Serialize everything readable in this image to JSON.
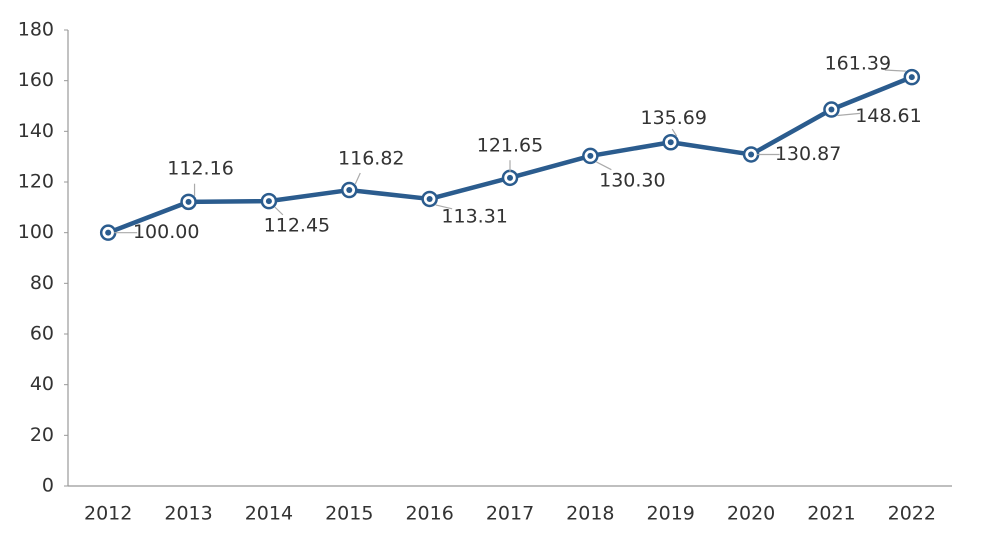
{
  "chart_data": {
    "type": "line",
    "categories": [
      "2012",
      "2013",
      "2014",
      "2015",
      "2016",
      "2017",
      "2018",
      "2019",
      "2020",
      "2021",
      "2022"
    ],
    "values": [
      100.0,
      112.16,
      112.45,
      116.82,
      113.31,
      121.65,
      130.3,
      135.69,
      130.87,
      148.61,
      161.39
    ],
    "value_labels": [
      "100.00",
      "112.16",
      "112.45",
      "116.82",
      "113.31",
      "121.65",
      "130.30",
      "135.69",
      "130.87",
      "148.61",
      "161.39"
    ],
    "color": "#2b5c8e",
    "ylim": [
      0,
      180
    ],
    "yticks": [
      0,
      20,
      40,
      60,
      80,
      100,
      120,
      140,
      160,
      180
    ],
    "grid": false
  }
}
